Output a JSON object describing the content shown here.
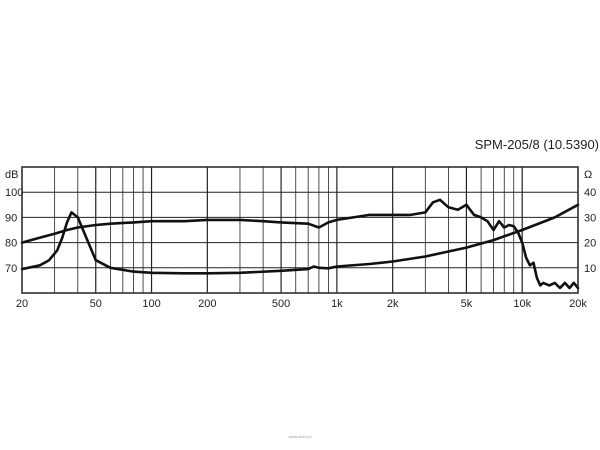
{
  "chart_data": {
    "type": "line",
    "title": "SPM-205/8 (10.5390)",
    "x_scale": "log",
    "xlim": [
      20,
      20000
    ],
    "x_ticks": [
      {
        "value": 20,
        "label": "20"
      },
      {
        "value": 50,
        "label": "50"
      },
      {
        "value": 100,
        "label": "100"
      },
      {
        "value": 200,
        "label": "200"
      },
      {
        "value": 500,
        "label": "500"
      },
      {
        "value": 1000,
        "label": "1k"
      },
      {
        "value": 2000,
        "label": "2k"
      },
      {
        "value": 5000,
        "label": "5k"
      },
      {
        "value": 10000,
        "label": "10k"
      },
      {
        "value": 20000,
        "label": "20k"
      }
    ],
    "y_left": {
      "unit": "dB",
      "range": [
        60,
        110
      ],
      "ticks": [
        70,
        80,
        90,
        100
      ]
    },
    "y_right": {
      "unit": "Ω",
      "range": [
        0,
        50
      ],
      "ticks": [
        10,
        20,
        30,
        40
      ]
    },
    "grid": true,
    "series": [
      {
        "axis": "left",
        "x": [
          20,
          25,
          30,
          35,
          40,
          50,
          60,
          80,
          100,
          150,
          200,
          300,
          400,
          500,
          700,
          800,
          900,
          1000,
          1500,
          2000,
          2500,
          3000,
          3300,
          3600,
          4000,
          4500,
          5000,
          5500,
          6000,
          6500,
          7000,
          7500,
          8000,
          8500,
          9000,
          9500,
          10000,
          10500,
          11000,
          11500,
          12000,
          12500,
          13000,
          14000,
          15000,
          16000,
          17000,
          18000,
          19000,
          20000
        ],
        "values": [
          80,
          82,
          83.5,
          85,
          86,
          87,
          87.5,
          88,
          88.5,
          88.5,
          89,
          89,
          88.5,
          88,
          87.5,
          86,
          88,
          89,
          91,
          91,
          91,
          92,
          96,
          97,
          94,
          93,
          95,
          91,
          90,
          88.5,
          85,
          88.5,
          86,
          87,
          86.5,
          84,
          80,
          74,
          71,
          72,
          66,
          63,
          64,
          63,
          64,
          62,
          64,
          62,
          64,
          62
        ]
      },
      {
        "axis": "right",
        "x": [
          20,
          25,
          28,
          31,
          33,
          35,
          37,
          40,
          45,
          50,
          60,
          80,
          100,
          150,
          200,
          300,
          500,
          700,
          750,
          800,
          900,
          1000,
          1500,
          2000,
          3000,
          5000,
          7000,
          10000,
          15000,
          20000
        ],
        "values": [
          9.5,
          11,
          13,
          17,
          22,
          28,
          32,
          30,
          21,
          13,
          10,
          8.5,
          8,
          7.8,
          7.8,
          8,
          8.8,
          9.5,
          10.5,
          10,
          9.8,
          10.5,
          11.5,
          12.5,
          14.5,
          18,
          21,
          25,
          30,
          35
        ]
      }
    ]
  },
  "footer": {
    "watermark": "www.ab24.pl"
  }
}
